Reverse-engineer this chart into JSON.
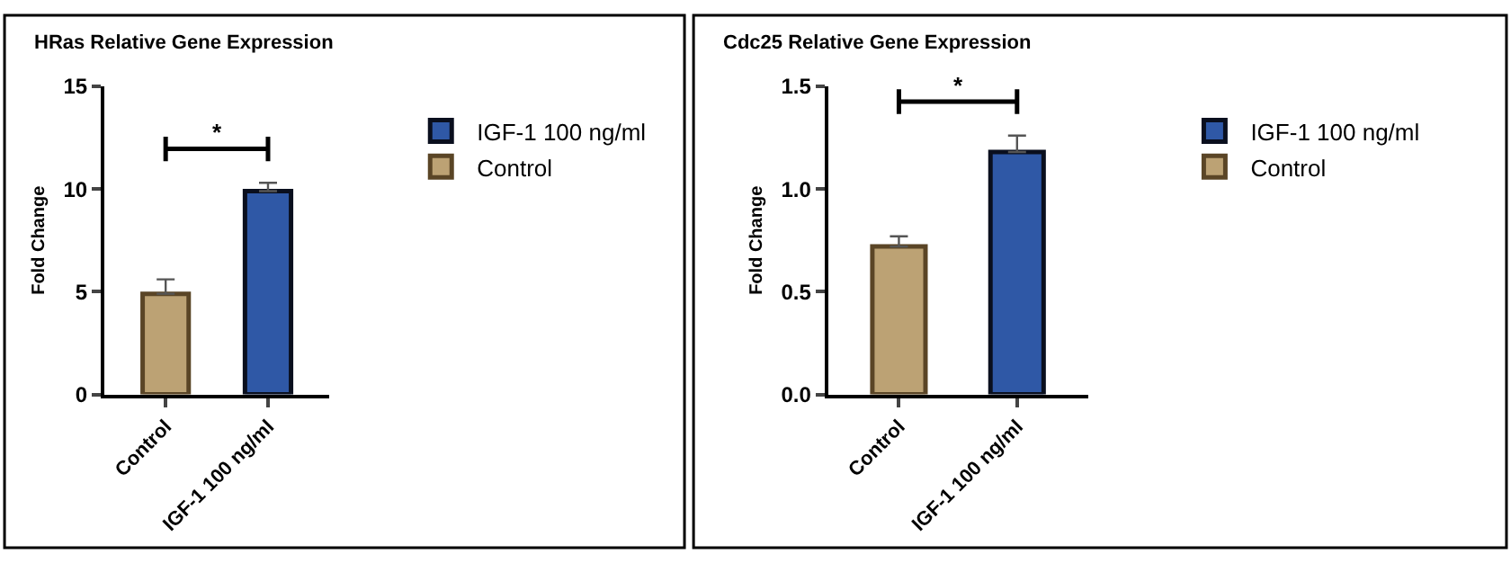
{
  "chart_data": [
    {
      "type": "bar",
      "title": "HRas Relative Gene Expression",
      "ylabel": "Fold Change",
      "categories": [
        "Control",
        "IGF-1 100 ng/ml"
      ],
      "ylim": [
        0,
        15
      ],
      "yticks": [
        0,
        5,
        10,
        15
      ],
      "legend": "right",
      "annotations": [
        "*"
      ],
      "series": [
        {
          "name": "IGF-1 100 ng/ml",
          "color": "#2f58a6",
          "values": [
            null,
            9.9
          ],
          "errors": [
            null,
            [
              9.9,
              10.3
            ]
          ]
        },
        {
          "name": "Control",
          "color": "#bca274",
          "values": [
            4.9,
            null
          ],
          "errors": [
            [
              4.9,
              5.6
            ],
            null
          ]
        }
      ]
    },
    {
      "type": "bar",
      "title": "Cdc25 Relative Gene Expression",
      "ylabel": "Fold Change",
      "categories": [
        "Control",
        "IGF-1 100 ng/ml"
      ],
      "ylim": [
        0,
        1.5
      ],
      "yticks": [
        {
          "value": 0,
          "label": "0.0"
        },
        {
          "value": 0.5,
          "label": "0.5"
        },
        {
          "value": 1,
          "label": "1.0"
        },
        {
          "value": 1.5,
          "label": "1.5"
        }
      ],
      "legend": "right",
      "annotations": [
        "*"
      ],
      "series": [
        {
          "name": "IGF-1 100 ng/ml",
          "color": "#2f58a6",
          "values": [
            null,
            1.18
          ],
          "errors": [
            null,
            [
              1.18,
              1.26
            ]
          ]
        },
        {
          "name": "Control",
          "color": "#bca274",
          "values": [
            0.72,
            null
          ],
          "errors": [
            [
              0.72,
              0.77
            ],
            null
          ]
        }
      ]
    }
  ]
}
